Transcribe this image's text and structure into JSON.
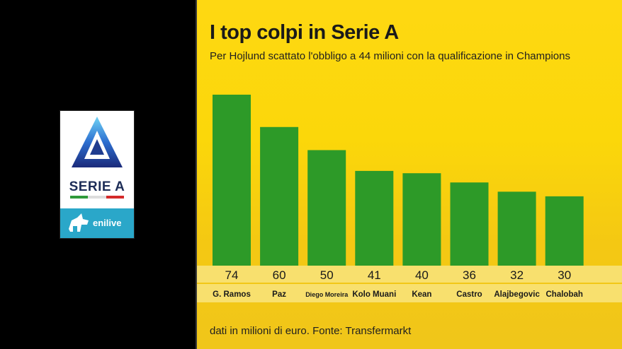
{
  "title": "I top colpi in Serie A",
  "subtitle": "Per Hojlund scattato l'obbligo a 44 milioni con la qualificazione in Champions",
  "footer": "dati in milioni di euro. Fonte: Transfermarkt",
  "logo": {
    "league": "SERIE A",
    "sponsor": "enilive"
  },
  "colors": {
    "background": "#fdd613",
    "bar": "#2d9a28",
    "band": "#f7e06a",
    "text": "#1a1a1a"
  },
  "chart_data": {
    "type": "bar",
    "title": "I top colpi in Serie A",
    "categories": [
      "G. Ramos",
      "Paz",
      "Diego Moreira",
      "Kolo Muani",
      "Kean",
      "Castro",
      "Alajbegovic",
      "Chalobah"
    ],
    "values": [
      74,
      60,
      50,
      41,
      40,
      36,
      32,
      30
    ],
    "ylim": [
      0,
      80
    ],
    "grid": false,
    "legend": "none"
  }
}
